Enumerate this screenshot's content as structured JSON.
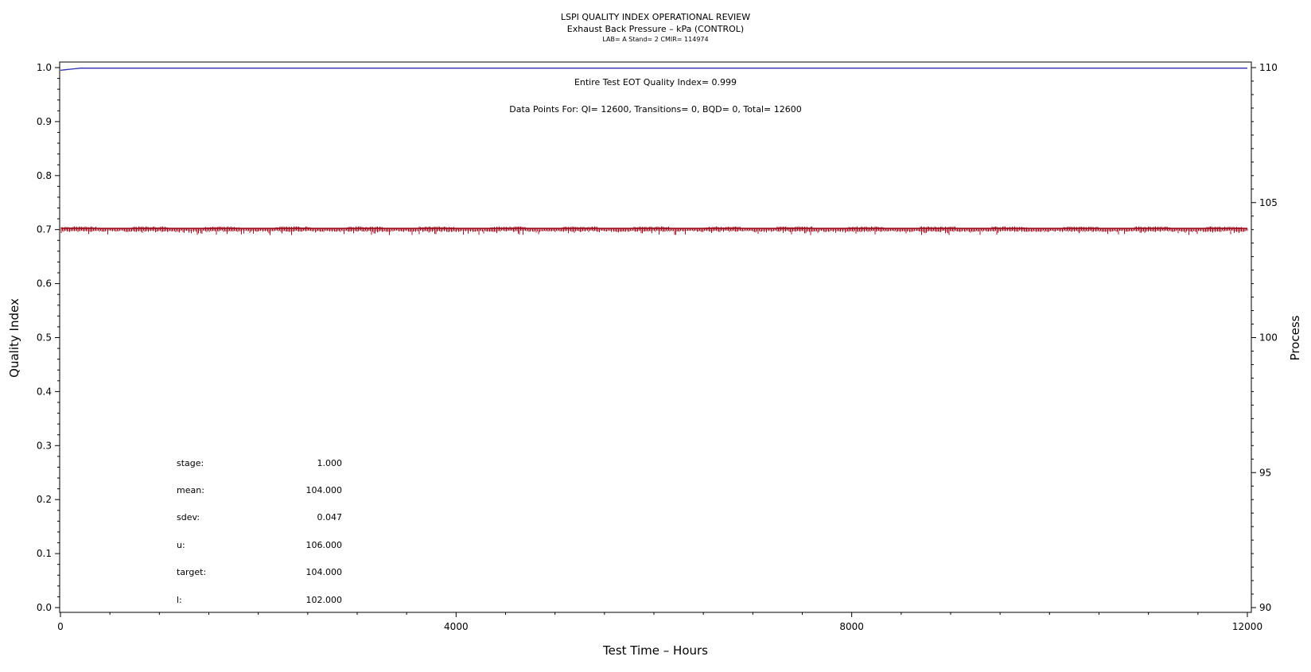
{
  "chart_data": {
    "type": "line",
    "title": "LSPI QUALITY INDEX OPERATIONAL REVIEW",
    "subtitle": "Exhaust Back Pressure – kPa (CONTROL)",
    "subsubtitle": "LAB= A Stand= 2 CMIR= 114974",
    "annotations": [
      "Entire Test EOT Quality Index=   0.999",
      "Data Points For: QI= 12600, Transitions=     0, BQD=     0, Total= 12600"
    ],
    "xlabel": "Test Time – Hours",
    "ylabel": "Quality Index",
    "y2label": "Process",
    "xlim": [
      0,
      12000
    ],
    "ylim": [
      0.0,
      1.0
    ],
    "y2lim": [
      90,
      110
    ],
    "x_ticks": [
      0,
      4000,
      8000,
      12000
    ],
    "y_ticks": [
      "0.0",
      "0.1",
      "0.2",
      "0.3",
      "0.4",
      "0.5",
      "0.6",
      "0.7",
      "0.8",
      "0.9",
      "1.0"
    ],
    "y2_ticks": [
      90,
      95,
      100,
      105,
      110
    ],
    "grid": false,
    "series": [
      {
        "axis": "left",
        "color": "#2b2bb8",
        "x": [
          0,
          50,
          100,
          150,
          200,
          12000
        ],
        "y": [
          0.995,
          0.996,
          0.997,
          0.998,
          0.999,
          0.999
        ]
      },
      {
        "axis": "right",
        "color": "#a01020",
        "mean": 104.0,
        "sdev": 0.047,
        "x_range": [
          0,
          12000
        ]
      }
    ],
    "stats": [
      {
        "label": "stage:",
        "value": "1.000"
      },
      {
        "label": "mean:",
        "value": "104.000"
      },
      {
        "label": "sdev:",
        "value": "0.047"
      },
      {
        "label": "u:",
        "value": "106.000"
      },
      {
        "label": "target:",
        "value": "104.000"
      },
      {
        "label": "l:",
        "value": "102.000"
      }
    ]
  }
}
